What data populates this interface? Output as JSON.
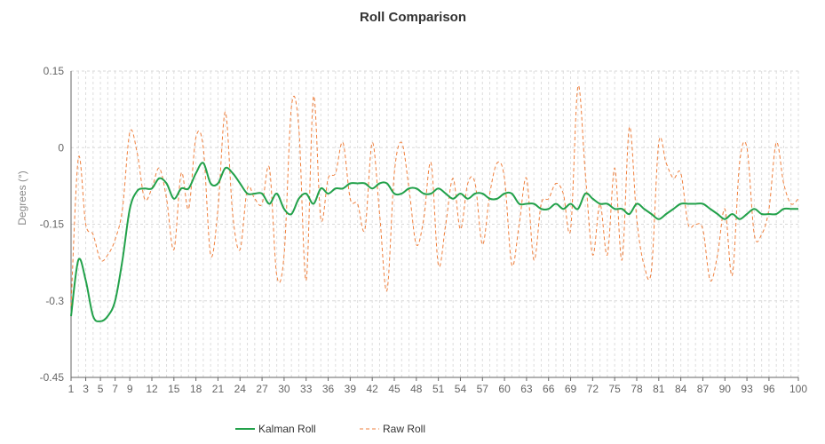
{
  "chart_data": {
    "type": "line",
    "title": "Roll Comparison",
    "xlabel": "",
    "ylabel": "Degrees (°)",
    "ylim": [
      -0.45,
      0.15
    ],
    "yticks": [
      0.15,
      0,
      -0.15,
      -0.3,
      -0.45
    ],
    "ytick_labels": [
      "0.15",
      "0",
      "-0.15",
      "-0.3",
      "-0.45"
    ],
    "x": [
      1,
      2,
      3,
      4,
      5,
      6,
      7,
      8,
      9,
      10,
      11,
      12,
      13,
      14,
      15,
      16,
      17,
      18,
      19,
      20,
      21,
      22,
      23,
      24,
      25,
      26,
      27,
      28,
      29,
      30,
      31,
      32,
      33,
      34,
      35,
      36,
      37,
      38,
      39,
      40,
      41,
      42,
      43,
      44,
      45,
      46,
      47,
      48,
      49,
      50,
      51,
      52,
      53,
      54,
      55,
      56,
      57,
      58,
      59,
      60,
      61,
      62,
      63,
      64,
      65,
      66,
      67,
      68,
      69,
      70,
      71,
      72,
      73,
      74,
      75,
      76,
      77,
      78,
      79,
      80,
      81,
      82,
      83,
      84,
      85,
      86,
      87,
      88,
      89,
      90,
      91,
      92,
      93,
      94,
      95,
      96,
      97,
      98,
      99,
      100
    ],
    "xticks": [
      1,
      3,
      5,
      7,
      9,
      12,
      15,
      18,
      21,
      24,
      27,
      30,
      33,
      36,
      39,
      42,
      45,
      48,
      51,
      54,
      57,
      60,
      63,
      66,
      69,
      72,
      75,
      78,
      81,
      84,
      87,
      90,
      93,
      96,
      100
    ],
    "xtick_labels": [
      "1",
      "3",
      "5",
      "7",
      "9",
      "12",
      "15",
      "18",
      "21",
      "24",
      "27",
      "30",
      "33",
      "36",
      "39",
      "42",
      "45",
      "48",
      "51",
      "54",
      "57",
      "60",
      "63",
      "66",
      "69",
      "72",
      "75",
      "78",
      "81",
      "84",
      "87",
      "90",
      "93",
      "96",
      "100"
    ],
    "grid": true,
    "legend_position": "bottom",
    "series": [
      {
        "name": "Kalman Roll",
        "color": "#22a14a",
        "style": "solid",
        "values": [
          -0.33,
          -0.22,
          -0.26,
          -0.33,
          -0.34,
          -0.33,
          -0.3,
          -0.22,
          -0.12,
          -0.085,
          -0.08,
          -0.08,
          -0.06,
          -0.07,
          -0.1,
          -0.08,
          -0.08,
          -0.05,
          -0.03,
          -0.07,
          -0.07,
          -0.04,
          -0.05,
          -0.07,
          -0.09,
          -0.09,
          -0.09,
          -0.11,
          -0.09,
          -0.12,
          -0.13,
          -0.1,
          -0.09,
          -0.11,
          -0.08,
          -0.09,
          -0.08,
          -0.08,
          -0.07,
          -0.07,
          -0.07,
          -0.08,
          -0.07,
          -0.07,
          -0.09,
          -0.09,
          -0.08,
          -0.08,
          -0.09,
          -0.09,
          -0.08,
          -0.09,
          -0.1,
          -0.09,
          -0.1,
          -0.09,
          -0.09,
          -0.1,
          -0.1,
          -0.09,
          -0.09,
          -0.11,
          -0.11,
          -0.11,
          -0.12,
          -0.12,
          -0.11,
          -0.12,
          -0.11,
          -0.12,
          -0.09,
          -0.1,
          -0.11,
          -0.11,
          -0.12,
          -0.12,
          -0.13,
          -0.11,
          -0.12,
          -0.13,
          -0.14,
          -0.13,
          -0.12,
          -0.11,
          -0.11,
          -0.11,
          -0.11,
          -0.12,
          -0.13,
          -0.14,
          -0.13,
          -0.14,
          -0.13,
          -0.12,
          -0.13,
          -0.13,
          -0.13,
          -0.12,
          -0.12,
          -0.12
        ]
      },
      {
        "name": "Raw Roll",
        "color": "#ef7f3c",
        "style": "dashed",
        "values": [
          -0.31,
          -0.02,
          -0.15,
          -0.17,
          -0.22,
          -0.21,
          -0.18,
          -0.12,
          0.03,
          -0.01,
          -0.1,
          -0.08,
          -0.04,
          -0.1,
          -0.2,
          -0.05,
          -0.12,
          0.02,
          0.0,
          -0.21,
          -0.12,
          0.07,
          -0.13,
          -0.2,
          -0.08,
          -0.1,
          -0.11,
          -0.04,
          -0.25,
          -0.21,
          0.08,
          0.04,
          -0.26,
          0.1,
          -0.14,
          -0.06,
          -0.05,
          0.01,
          -0.1,
          -0.11,
          -0.16,
          0.01,
          -0.13,
          -0.28,
          -0.05,
          0.01,
          -0.08,
          -0.19,
          -0.14,
          -0.03,
          -0.23,
          -0.15,
          -0.06,
          -0.16,
          -0.07,
          -0.07,
          -0.19,
          -0.09,
          -0.03,
          -0.06,
          -0.23,
          -0.15,
          -0.06,
          -0.22,
          -0.11,
          -0.1,
          -0.07,
          -0.09,
          -0.16,
          0.12,
          -0.05,
          -0.21,
          -0.11,
          -0.21,
          -0.04,
          -0.22,
          0.04,
          -0.14,
          -0.23,
          -0.24,
          0.01,
          -0.03,
          -0.06,
          -0.05,
          -0.15,
          -0.15,
          -0.16,
          -0.26,
          -0.21,
          -0.12,
          -0.25,
          -0.03,
          0.0,
          -0.17,
          -0.17,
          -0.12,
          0.01,
          -0.07,
          -0.11,
          -0.1
        ]
      }
    ]
  }
}
